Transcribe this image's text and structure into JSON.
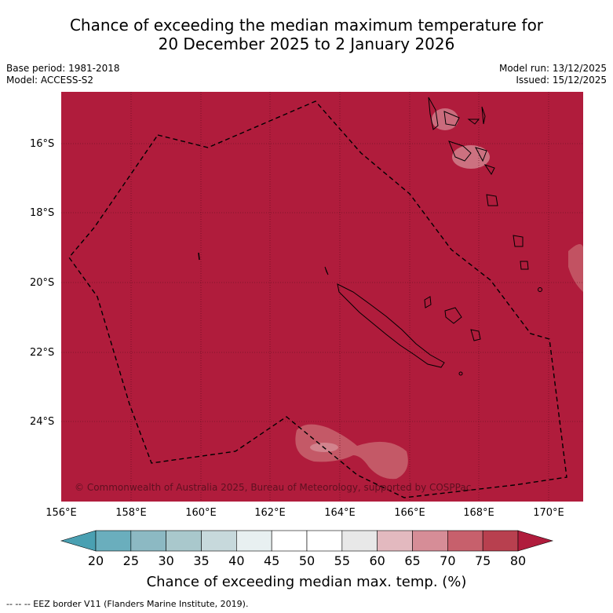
{
  "title": {
    "line1": "Chance of exceeding the median maximum temperature for",
    "line2": "20 December 2025 to 2 January 2026"
  },
  "meta": {
    "base_period": "Base period: 1981-2018",
    "model": "Model: ACCESS-S2",
    "model_run": "Model run: 13/12/2025",
    "issued": "Issued: 15/12/2025"
  },
  "lat_labels": [
    "16°S",
    "18°S",
    "20°S",
    "22°S",
    "24°S"
  ],
  "lon_labels": [
    "156°E",
    "158°E",
    "160°E",
    "162°E",
    "164°E",
    "166°E",
    "168°E",
    "170°E"
  ],
  "copyright": "© Commonwealth of Australia 2025, Bureau of Meteorology, supported by COSPPac",
  "colorbar": {
    "title": "Chance of exceeding median max. temp. (%)",
    "ticks": [
      "20",
      "25",
      "30",
      "35",
      "40",
      "45",
      "50",
      "55",
      "60",
      "65",
      "70",
      "75",
      "80"
    ],
    "colors": [
      "#4aa0b2",
      "#6aaebd",
      "#8cb9c3",
      "#a9c8cc",
      "#c7d9dc",
      "#e8f0f1",
      "#ffffff",
      "#ffffff",
      "#e8e8e8",
      "#e3b9bf",
      "#d68d97",
      "#c7606c",
      "#b8404f",
      "#b01c3c"
    ]
  },
  "map": {
    "background_color": "#b01c3c",
    "eez_color": "#000000"
  },
  "footer": "--  --  -- EEZ border V11 (Flanders Marine Institute, 2019)."
}
